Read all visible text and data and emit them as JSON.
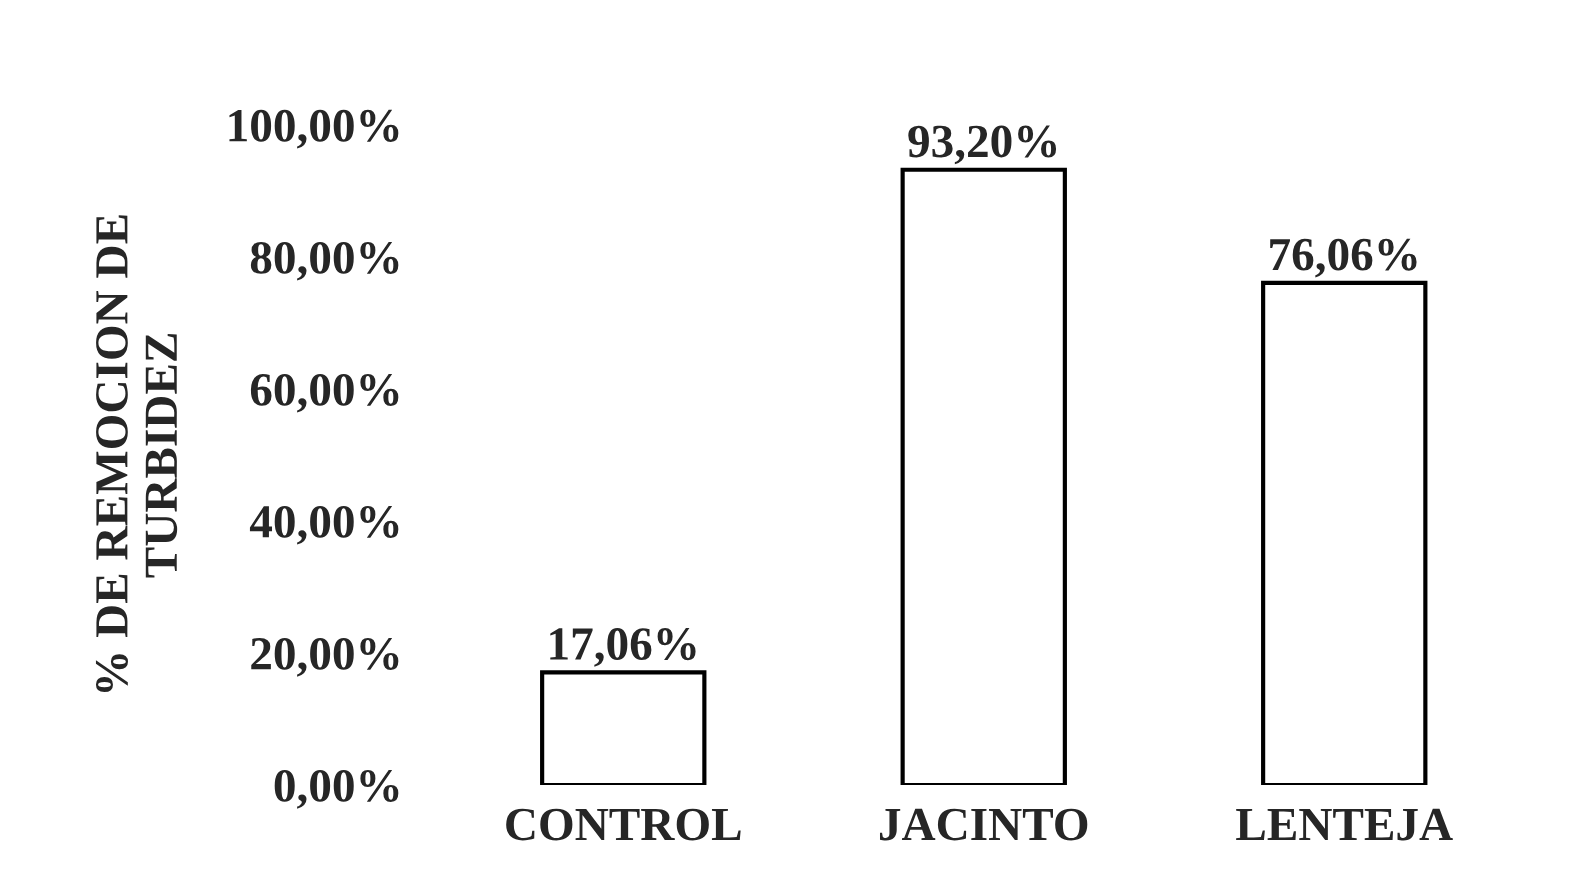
{
  "chart_data": {
    "type": "bar",
    "ylabel": "% DE REMOCION DE\nTURBIDEZ",
    "categories": [
      "CONTROL",
      "JACINTO",
      "LENTEJA"
    ],
    "values": [
      17.06,
      93.2,
      76.06
    ],
    "value_labels": [
      "17,06%",
      "93,20%",
      "76,06%"
    ],
    "color": "#ffffff",
    "ylim": [
      0,
      100
    ],
    "yticks": [
      {
        "value": 0,
        "label": "0,00%"
      },
      {
        "value": 20,
        "label": "20,00%"
      },
      {
        "value": 40,
        "label": "40,00%"
      },
      {
        "value": 60,
        "label": "60,00%"
      },
      {
        "value": 80,
        "label": "80,00%"
      },
      {
        "value": 100,
        "label": "100,00%"
      }
    ],
    "grid": false,
    "legend": false
  }
}
